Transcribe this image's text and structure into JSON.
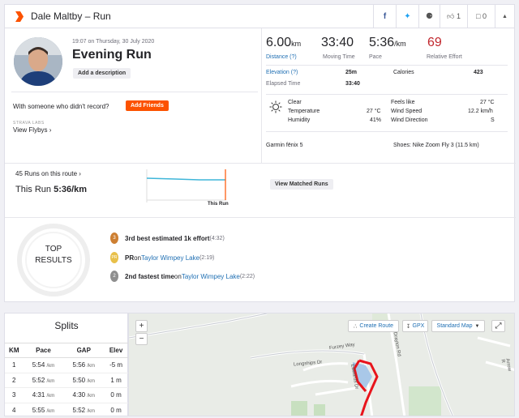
{
  "header": {
    "title": "Dale Maltby – Run",
    "kudos_count": "1",
    "comments_count": "0"
  },
  "athlete": {
    "datetime": "19:07 on Thursday, 30 July 2020",
    "activity_name": "Evening Run",
    "description_button": "Add a description",
    "with_someone": "With someone who didn't record?",
    "add_friends_button": "Add Friends",
    "labs_label": "STRAVA LABS",
    "flyby_link": "View Flybys"
  },
  "stats": {
    "distance_value": "6.00",
    "distance_unit": "km",
    "distance_label": "Distance (?)",
    "time_value": "33:40",
    "time_label": "Moving Time",
    "pace_value": "5:36",
    "pace_unit": "/km",
    "pace_label": "Pace",
    "effort_value": "69",
    "effort_label": "Relative Effort",
    "elevation_label": "Elevation (?)",
    "elevation_value": "25m",
    "calories_label": "Calories",
    "calories_value": "423",
    "elapsed_label": "Elapsed Time",
    "elapsed_value": "33:40"
  },
  "weather": {
    "condition": "Clear",
    "temperature_label": "Temperature",
    "temperature_value": "27 °C",
    "humidity_label": "Humidity",
    "humidity_value": "41%",
    "feels_like_label": "Feels like",
    "feels_like_value": "27 °C",
    "wind_speed_label": "Wind Speed",
    "wind_speed_value": "12.2 km/h",
    "wind_direction_label": "Wind Direction",
    "wind_direction_value": "S"
  },
  "gear": {
    "device": "Garmin fēnix 5",
    "shoes": "Shoes: Nike Zoom Fly 3 (11.5 km)"
  },
  "route": {
    "runs_on_route": "45 Runs on this route",
    "this_run_label": "This Run",
    "this_run_pace": "5:36/km",
    "this_run_marker": "This Run",
    "view_matched_button": "View Matched Runs"
  },
  "top_results": {
    "badge_line1": "TOP",
    "badge_line2": "RESULTS",
    "items": [
      {
        "medal": "3",
        "bold": "3rd best estimated 1k effort",
        "link": "",
        "middle": "",
        "extra": " (4:32)"
      },
      {
        "medal": "PR",
        "bold": "PR",
        "middle": " on ",
        "link": "Taylor Wimpey Lake",
        "extra": " (2:19)"
      },
      {
        "medal": "2",
        "bold": "2nd fastest time",
        "middle": " on ",
        "link": "Taylor Wimpey Lake",
        "extra": " (2:22)"
      }
    ]
  },
  "splits": {
    "title": "Splits",
    "headers": [
      "KM",
      "Pace",
      "GAP",
      "Elev"
    ],
    "rows": [
      {
        "km": "1",
        "pace": "5:54",
        "gap": "5:56",
        "elev": "-5 m"
      },
      {
        "km": "2",
        "pace": "5:52",
        "gap": "5:50",
        "elev": "1 m"
      },
      {
        "km": "3",
        "pace": "4:31",
        "gap": "4:30",
        "elev": "0 m"
      },
      {
        "km": "4",
        "pace": "5:55",
        "gap": "5:52",
        "elev": "0 m"
      }
    ],
    "unit": "/km"
  },
  "map": {
    "zoom_in": "+",
    "zoom_out": "−",
    "create_route": "Create Route",
    "gpx": "GPX",
    "map_type": "Standard Map",
    "streets": [
      "Furzey Way",
      "Longships Dr",
      "Drayton Rd",
      "Arrow R",
      "Edwards Dr"
    ],
    "route_color": "#e8141c"
  },
  "colors": {
    "brand": "#fc5200",
    "link": "#1f6fb3",
    "effort": "#c1272d"
  }
}
